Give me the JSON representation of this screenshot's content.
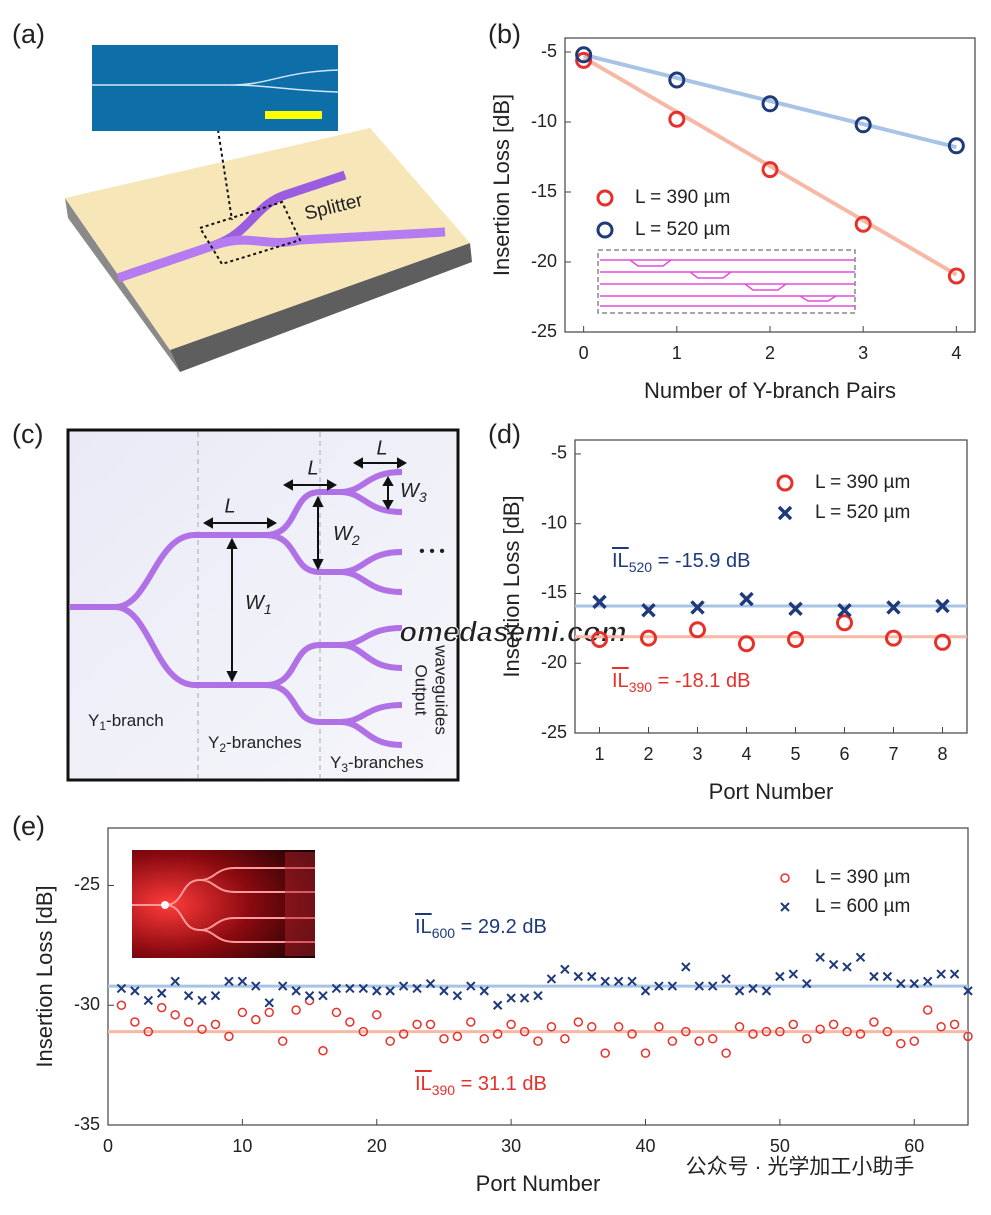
{
  "panel_labels": [
    "(a)",
    "(b)",
    "(c)",
    "(d)",
    "(e)"
  ],
  "panel_a": {
    "label": "Splitter"
  },
  "panel_c": {
    "lengths": [
      "L",
      "L",
      "L"
    ],
    "widths": [
      {
        "text": "W",
        "sub": "1"
      },
      {
        "text": "W",
        "sub": "2"
      },
      {
        "text": "W",
        "sub": "3"
      }
    ],
    "branches": [
      {
        "text": "Y",
        "sub": "1",
        "rest": "-branch"
      },
      {
        "text": "Y",
        "sub": "2",
        "rest": "-branches"
      },
      {
        "text": "Y",
        "sub": "3",
        "rest": "-branches"
      }
    ],
    "outputs": [
      "Output",
      "waveguides"
    ],
    "ellipsis": "• • •"
  },
  "watermarks": [
    "omedasemi.com",
    "公众号 · 光学加工小助手"
  ],
  "chart_data": [
    {
      "type": "scatter",
      "xlabel": "Number of Y-branch Pairs",
      "ylabel": "Insertion Loss [dB]",
      "x": [
        0,
        1,
        2,
        3,
        4
      ],
      "xlim": [
        -0.2,
        4.2
      ],
      "xticks": [
        0,
        1,
        2,
        3,
        4
      ],
      "ylim": [
        -25,
        -4
      ],
      "yticks": [
        -25,
        -20,
        -15,
        -10,
        -5
      ],
      "legend": "center left",
      "series": [
        {
          "name": "L = 390 µm",
          "color": "#e8302a",
          "line_color": "#f7b9a6",
          "marker": "circle",
          "values": [
            -5.6,
            -9.8,
            -13.4,
            -17.3,
            -21.0
          ],
          "fit": {
            "x": [
              0,
              4
            ],
            "y": [
              -5.4,
              -20.9
            ]
          }
        },
        {
          "name": "L = 520 µm",
          "color": "#1f3a7a",
          "line_color": "#a7c3e6",
          "marker": "circle",
          "values": [
            -5.2,
            -7.0,
            -8.7,
            -10.2,
            -11.7
          ],
          "fit": {
            "x": [
              0,
              4
            ],
            "y": [
              -5.2,
              -11.8
            ]
          }
        }
      ]
    },
    {
      "type": "scatter",
      "xlabel": "Port Number",
      "ylabel": "Insertion Loss [dB]",
      "x": [
        1,
        2,
        3,
        4,
        5,
        6,
        7,
        8
      ],
      "xlim": [
        0.5,
        8.5
      ],
      "xticks": [
        1,
        2,
        3,
        4,
        5,
        6,
        7,
        8
      ],
      "ylim": [
        -25,
        -4
      ],
      "yticks": [
        -25,
        -20,
        -15,
        -10,
        -5
      ],
      "legend": "upper right",
      "series": [
        {
          "name": "L = 390 µm",
          "color": "#e8302a",
          "line_color": "#f7b9a6",
          "marker": "circle",
          "values": [
            -18.3,
            -18.2,
            -17.6,
            -18.6,
            -18.3,
            -17.1,
            -18.2,
            -18.5
          ],
          "mean": -18.1
        },
        {
          "name": "L = 520 µm",
          "color": "#1f3a7a",
          "line_color": "#a7c3e6",
          "marker": "x",
          "values": [
            -15.6,
            -16.2,
            -16.0,
            -15.4,
            -16.1,
            -16.2,
            -16.0,
            -15.9
          ],
          "mean": -15.9
        }
      ],
      "annotations": [
        {
          "text": "IL",
          "sub": "520",
          "rest": " = -15.9 dB",
          "color": "#1f3a7a"
        },
        {
          "text": "IL",
          "sub": "390",
          "rest": " = -18.1 dB",
          "color": "#e8302a"
        }
      ]
    },
    {
      "type": "scatter",
      "xlabel": "Port Number",
      "ylabel": "Insertion Loss [dB]",
      "x": [
        1,
        2,
        3,
        4,
        5,
        6,
        7,
        8,
        9,
        10,
        11,
        12,
        13,
        14,
        15,
        16,
        17,
        18,
        19,
        20,
        21,
        22,
        23,
        24,
        25,
        26,
        27,
        28,
        29,
        30,
        31,
        32,
        33,
        34,
        35,
        36,
        37,
        38,
        39,
        40,
        41,
        42,
        43,
        44,
        45,
        46,
        47,
        48,
        49,
        50,
        51,
        52,
        53,
        54,
        55,
        56,
        57,
        58,
        59,
        60,
        61,
        62,
        63,
        64
      ],
      "xlim": [
        0,
        64
      ],
      "xticks": [
        0,
        10,
        20,
        30,
        40,
        50,
        60
      ],
      "ylim": [
        -35,
        -22.6
      ],
      "yticks": [
        -35,
        -30,
        -25
      ],
      "legend": "upper right",
      "series": [
        {
          "name": "L = 390 µm",
          "color": "#e8302a",
          "line_color": "#f7b9a6",
          "marker": "circle",
          "mean": -31.1,
          "values": [
            -30.0,
            -30.7,
            -31.1,
            -30.1,
            -30.4,
            -30.7,
            -31.0,
            -30.8,
            -31.3,
            -30.3,
            -30.6,
            -30.3,
            -31.5,
            -30.2,
            -29.8,
            -31.9,
            -30.3,
            -30.7,
            -31.1,
            -30.4,
            -31.5,
            -31.2,
            -30.8,
            -30.8,
            -31.4,
            -31.3,
            -30.7,
            -31.4,
            -31.2,
            -30.8,
            -31.1,
            -31.5,
            -30.9,
            -31.4,
            -30.7,
            -30.9,
            -32.0,
            -30.9,
            -31.2,
            -32.0,
            -30.9,
            -31.5,
            -31.1,
            -31.5,
            -31.4,
            -32.0,
            -30.9,
            -31.2,
            -31.1,
            -31.1,
            -30.8,
            -31.4,
            -31.0,
            -30.8,
            -31.1,
            -31.2,
            -30.7,
            -31.1,
            -31.6,
            -31.5,
            -30.2,
            -30.9,
            -30.8,
            -31.3
          ]
        },
        {
          "name": "L = 600 µm",
          "color": "#1f3a7a",
          "line_color": "#a7c3e6",
          "marker": "x",
          "mean": -29.2,
          "values": [
            -29.3,
            -29.4,
            -29.8,
            -29.5,
            -29.0,
            -29.6,
            -29.8,
            -29.6,
            -29.0,
            -29.0,
            -29.2,
            -29.9,
            -29.2,
            -29.4,
            -29.6,
            -29.6,
            -29.3,
            -29.3,
            -29.3,
            -29.4,
            -29.4,
            -29.2,
            -29.3,
            -29.1,
            -29.4,
            -29.6,
            -29.2,
            -29.4,
            -30.0,
            -29.7,
            -29.7,
            -29.6,
            -28.9,
            -28.5,
            -28.8,
            -28.8,
            -29.0,
            -29.0,
            -29.0,
            -29.4,
            -29.2,
            -29.2,
            -28.4,
            -29.2,
            -29.2,
            -28.9,
            -29.4,
            -29.3,
            -29.4,
            -28.8,
            -28.7,
            -29.1,
            -28.0,
            -28.3,
            -28.4,
            -28.0,
            -28.8,
            -28.8,
            -29.1,
            -29.1,
            -29.0,
            -28.7,
            -28.7,
            -29.4
          ]
        }
      ],
      "annotations": [
        {
          "text": "IL",
          "sub": "600",
          "rest": " = 29.2 dB",
          "color": "#1f3a7a"
        },
        {
          "text": "IL",
          "sub": "390",
          "rest": " = 31.1 dB",
          "color": "#e8302a"
        }
      ]
    }
  ]
}
